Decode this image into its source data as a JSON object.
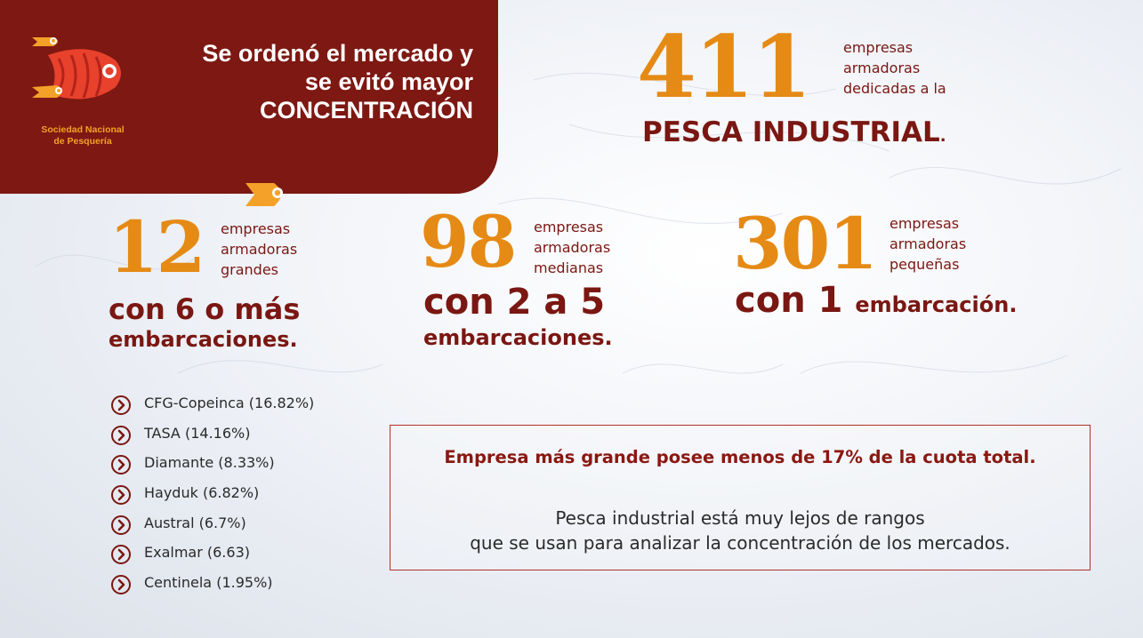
{
  "colors": {
    "panel": "#7d1812",
    "accent_orange": "#e58a15",
    "dark_red": "#7a1712",
    "text_dark": "#2a2a2a"
  },
  "logo": {
    "name_line1": "Sociedad Nacional",
    "name_line2": "de Pesquería",
    "icon": "fish-logo-icon"
  },
  "headline": {
    "line1": "Se ordenó el mercado y",
    "line2": "se evitó mayor",
    "line3": "CONCENTRACIÓN"
  },
  "total": {
    "number": "411",
    "desc_line1": "empresas",
    "desc_line2": "armadoras",
    "desc_line3": "dedicadas a la",
    "label": "PESCA INDUSTRIAL",
    "dot": "."
  },
  "groups": {
    "large": {
      "number": "12",
      "desc_line1": "empresas",
      "desc_line2": "armadoras",
      "desc_line3": "grandes",
      "sub_line1": "con 6 o más",
      "sub_line2": "embarcaciones."
    },
    "medium": {
      "number": "98",
      "desc_line1": "empresas",
      "desc_line2": "armadoras",
      "desc_line3": "medianas",
      "sub_line1": "con 2 a 5",
      "sub_line2": "embarcaciones."
    },
    "small": {
      "number": "301",
      "desc_line1": "empresas",
      "desc_line2": "armadoras",
      "desc_line3": "pequeñas",
      "sub_big": "con 1",
      "sub_small": "embarcación."
    }
  },
  "companies": [
    "CFG-Copeinca (16.82%)",
    "TASA (14.16%)",
    "Diamante (8.33%)",
    "Hayduk (6.82%)",
    "Austral (6.7%)",
    "Exalmar (6.63)",
    "Centinela (1.95%)"
  ],
  "box": {
    "title": "Empresa más grande posee menos de 17% de la cuota total.",
    "line1": "Pesca industrial está muy lejos de rangos",
    "line2": "que se usan para analizar la concentración de los mercados."
  }
}
